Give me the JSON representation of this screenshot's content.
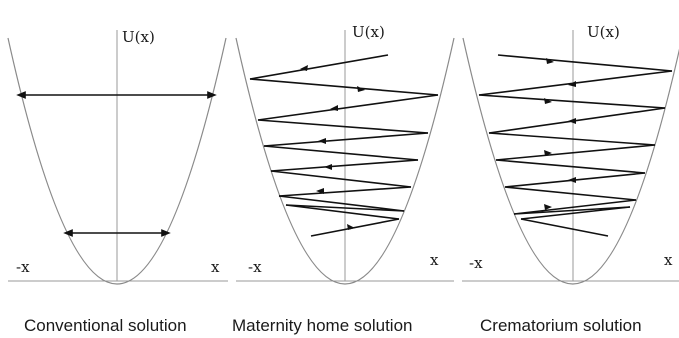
{
  "panels": [
    {
      "ylabel": "U(x)",
      "neg_x_label": "-x",
      "pos_x_label": "x",
      "caption": "Conventional solution"
    },
    {
      "ylabel": "U(x)",
      "neg_x_label": "-x",
      "pos_x_label": "x",
      "caption": "Maternity home solution"
    },
    {
      "ylabel": "U(x)",
      "neg_x_label": "-x",
      "pos_x_label": "x",
      "caption": "Crematorium solution"
    }
  ],
  "colors": {
    "curve": "#8a8a8a",
    "axes": "#9a9a9a",
    "path": "#111111"
  }
}
